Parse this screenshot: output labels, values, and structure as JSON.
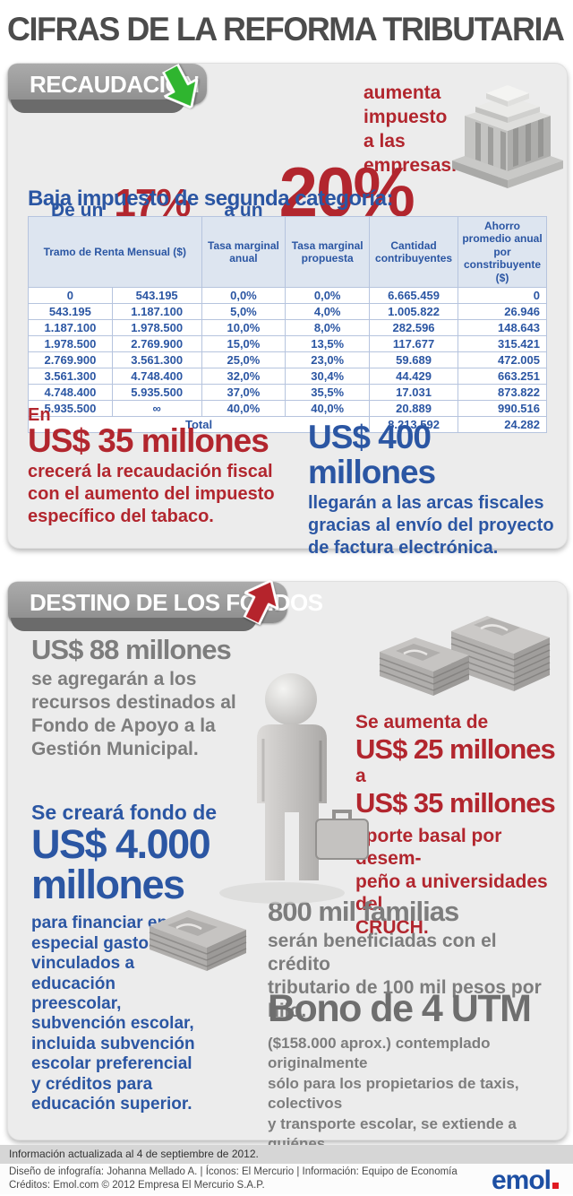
{
  "title": "CIFRAS DE LA REFORMA TRIBUTARIA",
  "colors": {
    "red_accent": "#b2262e",
    "blue_accent": "#2b56a3",
    "gray_text": "#7d7d7d",
    "title_gray": "#4c4c4c",
    "panel_bg": "#ececec",
    "tab_gray": "#9a9a9a",
    "green_arrow": "#2fb52f",
    "table_header_bg": "#dde5f0",
    "emol_blue": "#1d4fa3",
    "emol_red": "#e01a22"
  },
  "recaudacion": {
    "tab_label": "RECAUDACIÓN",
    "aumenta_note": "aumenta\nimpuesto\na las\nempresas.",
    "rate": {
      "de_un": "De un",
      "from": "17%",
      "a_un": "a un",
      "to": "20%"
    },
    "table_title": "Baja impuesto de segunda categoría:",
    "table": {
      "headers": [
        "Tramo de Renta Mensual ($)",
        "Tasa marginal anual",
        "Tasa marginal propuesta",
        "Cantidad contribuyentes",
        "Ahorro promedio anual por constribuyente ($)"
      ],
      "rows": [
        [
          "0",
          "543.195",
          "0,0%",
          "0,0%",
          "6.665.459",
          "0"
        ],
        [
          "543.195",
          "1.187.100",
          "5,0%",
          "4,0%",
          "1.005.822",
          "26.946"
        ],
        [
          "1.187.100",
          "1.978.500",
          "10,0%",
          "8,0%",
          "282.596",
          "148.643"
        ],
        [
          "1.978.500",
          "2.769.900",
          "15,0%",
          "13,5%",
          "117.677",
          "315.421"
        ],
        [
          "2.769.900",
          "3.561.300",
          "25,0%",
          "23,0%",
          "59.689",
          "472.005"
        ],
        [
          "3.561.300",
          "4.748.400",
          "32,0%",
          "30,4%",
          "44.429",
          "663.251"
        ],
        [
          "4.748.400",
          "5.935.500",
          "37,0%",
          "35,5%",
          "17.031",
          "873.822"
        ],
        [
          "5.935.500",
          "∞",
          "40,0%",
          "40,0%",
          "20.889",
          "990.516"
        ]
      ],
      "total_label": "Total",
      "total_contribuyentes": "8.213.592",
      "total_ahorro": "24.282"
    },
    "tabaco": {
      "prefix": "En",
      "amount": "US$ 35 millones",
      "desc": "crecerá la recaudación fiscal\ncon el aumento del impuesto\nespecífico del tabaco."
    },
    "factura": {
      "amount": "US$ 400 millones",
      "desc": "llegarán a las arcas fiscales\ngracias al envío del proyecto\nde factura electrónica."
    }
  },
  "destino": {
    "tab_label": "DESTINO DE LOS FONDOS",
    "municipal": {
      "amount": "US$ 88 millones",
      "desc": "se agregarán a los\nrecursos destinados al\nFondo de Apoyo a la\nGestión Municipal."
    },
    "cruch": {
      "line1": "Se aumenta de",
      "amount1": "US$ 25 millones",
      "connector": "a",
      "amount2": "US$ 35 millones",
      "desc": "aporte basal por desem-\npeño a universidades del\nCRUCH."
    },
    "educacion": {
      "line1": "Se creará fondo de",
      "amount_line1": "US$ 4.000",
      "amount_line2": "millones",
      "desc": "para financiar en\nespecial gastos\nvinculados a\neducación\npreescolar,\nsubvención escolar,\nincluida subvención\nescolar preferencial\ny créditos para\neducación superior."
    },
    "familias": {
      "amount": "800 mil familias",
      "desc": "serán beneficiadas con el crédito\ntributario de 100 mil pesos por hijo."
    },
    "bono": {
      "amount": "Bono de 4 UTM",
      "desc": "($158.000 aprox.) contemplado originalmente\nsólo para los propietarios de taxis, colectivos\ny transporte escolar, se extiende a quiénes\nrealicen el uso comercial del vehículo."
    }
  },
  "footer": {
    "updated": "Información actualizada al 4 de septiembre de 2012.",
    "credits_line1": "Diseño de infografía: Johanna Mellado A. | Íconos: El Mercurio | Información: Equipo de Economía",
    "credits_line2": "Créditos: Emol.com  ©  2012 Empresa El Mercurio S.A.P.",
    "logo_text": "emol"
  }
}
